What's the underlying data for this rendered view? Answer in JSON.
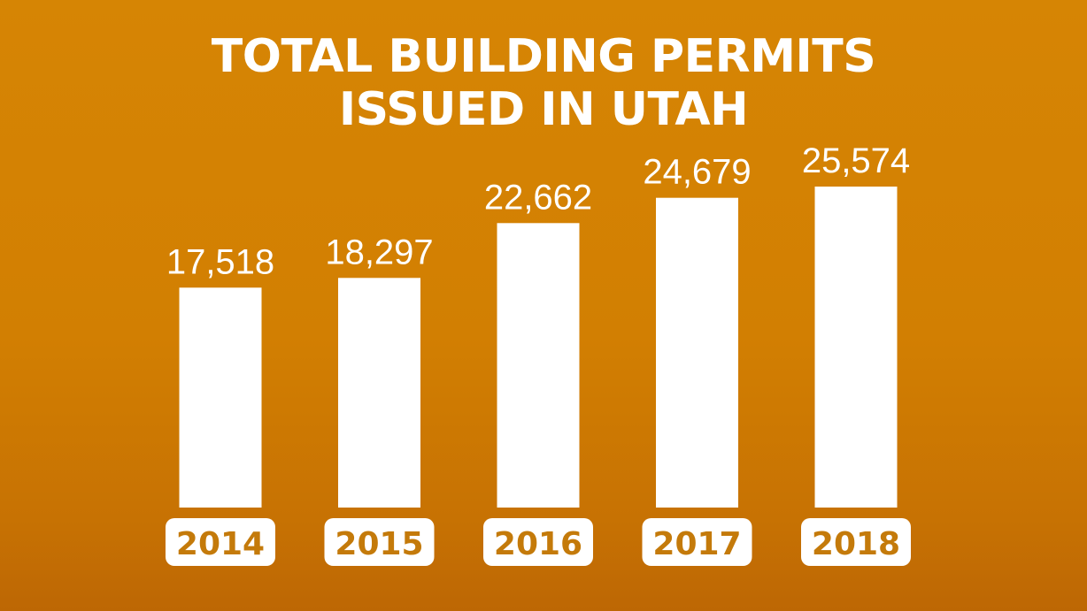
{
  "title_lines": [
    "TOTAL BUILDING PERMITS",
    "ISSUED IN UTAH"
  ],
  "colors": {
    "background": "#d68504",
    "bar": "#ffffff",
    "label_text": "#ffffff",
    "year_text": "#c47a0a"
  },
  "chart_data": {
    "type": "bar",
    "title": "TOTAL BUILDING PERMITS ISSUED IN UTAH",
    "categories": [
      "2014",
      "2015",
      "2016",
      "2017",
      "2018"
    ],
    "values": [
      17518,
      18297,
      22662,
      24679,
      25574
    ],
    "value_labels": [
      "17,518",
      "18,297",
      "22,662",
      "24,679",
      "25,574"
    ],
    "xlabel": "",
    "ylabel": "",
    "grid": false,
    "legend": "none"
  }
}
